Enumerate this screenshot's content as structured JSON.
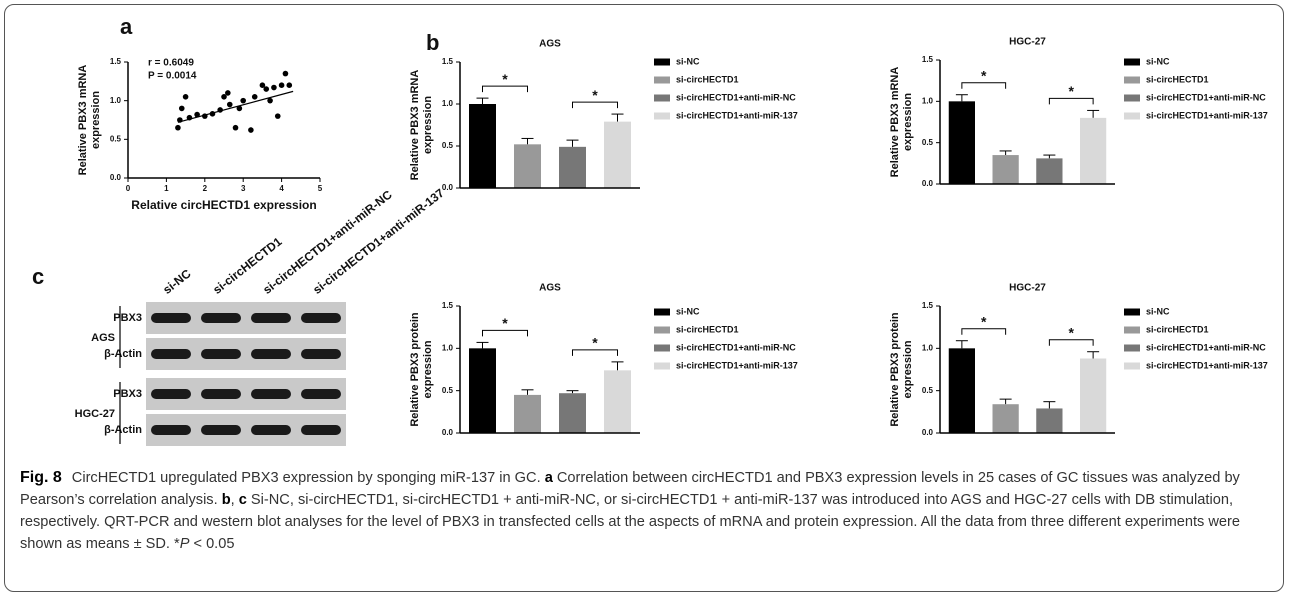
{
  "panel_labels": [
    "a",
    "b",
    "c"
  ],
  "chart_data": [
    {
      "type": "scatter",
      "annotations": [
        "r = 0.6049",
        "P = 0.0014"
      ],
      "xlabel": "Relative circHECTD1 expression",
      "ylabel": [
        "Relative PBX3 mRNA",
        "expression"
      ],
      "x": [
        1.3,
        1.35,
        1.4,
        1.5,
        1.6,
        1.8,
        2.0,
        2.2,
        2.4,
        2.5,
        2.6,
        2.65,
        2.8,
        2.9,
        3.0,
        3.2,
        3.3,
        3.5,
        3.6,
        3.7,
        3.8,
        3.9,
        4.0,
        4.1,
        4.2
      ],
      "values": [
        0.65,
        0.75,
        0.9,
        1.05,
        0.78,
        0.82,
        0.8,
        0.83,
        0.88,
        1.05,
        1.1,
        0.95,
        0.65,
        0.9,
        1.0,
        0.62,
        1.05,
        1.2,
        1.15,
        1.0,
        1.17,
        0.8,
        1.2,
        1.35,
        1.2
      ],
      "color": "#000000",
      "fit_line": {
        "x": [
          1.3,
          4.3
        ],
        "y": [
          0.72,
          1.12
        ]
      },
      "xlim": [
        0,
        5
      ],
      "xticks": [
        0,
        1,
        2,
        3,
        4,
        5
      ],
      "ylim": [
        0,
        1.5
      ],
      "yticks": [
        {
          "value": 0,
          "label": "0.0"
        },
        0.5,
        {
          "value": 1,
          "label": "1.0"
        },
        1.5
      ]
    },
    {
      "type": "bar",
      "title": "AGS",
      "ylabel": [
        "Relative PBX3 mRNA",
        "expression"
      ],
      "series": [
        {
          "name": "si-NC",
          "color": "#000000",
          "values": [
            1.0
          ],
          "errors": [
            0.07
          ]
        },
        {
          "name": "si-circHECTD1",
          "color": "#999999",
          "values": [
            0.52
          ],
          "errors": [
            0.07
          ]
        },
        {
          "name": "si-circHECTD1+anti-miR-NC",
          "color": "#777777",
          "values": [
            0.49
          ],
          "errors": [
            0.08
          ]
        },
        {
          "name": "si-circHECTD1+anti-miR-137",
          "color": "#d9d9d9",
          "values": [
            0.79
          ],
          "errors": [
            0.09
          ]
        }
      ],
      "significance": [
        {
          "pair": [
            0,
            1
          ],
          "label": "*"
        },
        {
          "pair": [
            2,
            3
          ],
          "label": "*"
        }
      ],
      "ylim": [
        0,
        1.5
      ],
      "yticks": [
        {
          "value": 0,
          "label": "0.0"
        },
        0.5,
        {
          "value": 1,
          "label": "1.0"
        },
        1.5
      ]
    },
    {
      "type": "bar",
      "title": "HGC-27",
      "ylabel": [
        "Relative PBX3 mRNA",
        "expression"
      ],
      "series": [
        {
          "name": "si-NC",
          "color": "#000000",
          "values": [
            1.0
          ],
          "errors": [
            0.08
          ]
        },
        {
          "name": "si-circHECTD1",
          "color": "#999999",
          "values": [
            0.35
          ],
          "errors": [
            0.05
          ]
        },
        {
          "name": "si-circHECTD1+anti-miR-NC",
          "color": "#777777",
          "values": [
            0.31
          ],
          "errors": [
            0.04
          ]
        },
        {
          "name": "si-circHECTD1+anti-miR-137",
          "color": "#d9d9d9",
          "values": [
            0.8
          ],
          "errors": [
            0.09
          ]
        }
      ],
      "significance": [
        {
          "pair": [
            0,
            1
          ],
          "label": "*"
        },
        {
          "pair": [
            2,
            3
          ],
          "label": "*"
        }
      ],
      "ylim": [
        0,
        1.5
      ],
      "yticks": [
        {
          "value": 0,
          "label": "0.0"
        },
        0.5,
        {
          "value": 1,
          "label": "1.0"
        },
        1.5
      ]
    },
    {
      "type": "bar",
      "title": "AGS",
      "ylabel": [
        "Relative PBX3 protein",
        "expression"
      ],
      "series": [
        {
          "name": "si-NC",
          "color": "#000000",
          "values": [
            1.0
          ],
          "errors": [
            0.07
          ]
        },
        {
          "name": "si-circHECTD1",
          "color": "#999999",
          "values": [
            0.45
          ],
          "errors": [
            0.06
          ]
        },
        {
          "name": "si-circHECTD1+anti-miR-NC",
          "color": "#777777",
          "values": [
            0.47
          ],
          "errors": [
            0.03
          ]
        },
        {
          "name": "si-circHECTD1+anti-miR-137",
          "color": "#d9d9d9",
          "values": [
            0.74
          ],
          "errors": [
            0.1
          ]
        }
      ],
      "significance": [
        {
          "pair": [
            0,
            1
          ],
          "label": "*"
        },
        {
          "pair": [
            2,
            3
          ],
          "label": "*"
        }
      ],
      "ylim": [
        0,
        1.5
      ],
      "yticks": [
        {
          "value": 0,
          "label": "0.0"
        },
        0.5,
        {
          "value": 1,
          "label": "1.0"
        },
        1.5
      ]
    },
    {
      "type": "bar",
      "title": "HGC-27",
      "ylabel": [
        "Relative PBX3 protein",
        "expression"
      ],
      "series": [
        {
          "name": "si-NC",
          "color": "#000000",
          "values": [
            1.0
          ],
          "errors": [
            0.09
          ]
        },
        {
          "name": "si-circHECTD1",
          "color": "#999999",
          "values": [
            0.34
          ],
          "errors": [
            0.06
          ]
        },
        {
          "name": "si-circHECTD1+anti-miR-NC",
          "color": "#777777",
          "values": [
            0.29
          ],
          "errors": [
            0.08
          ]
        },
        {
          "name": "si-circHECTD1+anti-miR-137",
          "color": "#d9d9d9",
          "values": [
            0.88
          ],
          "errors": [
            0.08
          ]
        }
      ],
      "significance": [
        {
          "pair": [
            0,
            1
          ],
          "label": "*"
        },
        {
          "pair": [
            2,
            3
          ],
          "label": "*"
        }
      ],
      "ylim": [
        0,
        1.5
      ],
      "yticks": [
        {
          "value": 0,
          "label": "0.0"
        },
        0.5,
        {
          "value": 1,
          "label": "1.0"
        },
        1.5
      ]
    }
  ],
  "blot": {
    "lanes": [
      "si-NC",
      "si-circHECTD1",
      "si-circHECTD1+anti-miR-NC",
      "si-circHECTD1+anti-miR-137"
    ],
    "groups": [
      {
        "name": "AGS",
        "bands": [
          "PBX3",
          "β-Actin"
        ]
      },
      {
        "name": "HGC-27",
        "bands": [
          "PBX3",
          "β-Actin"
        ]
      }
    ]
  },
  "caption": {
    "segments": [
      {
        "text": "Fig. 8",
        "bold": true
      },
      {
        "text": "CircHECTD1 upregulated PBX3 expression by sponging miR-137 in GC. "
      },
      {
        "text": "a",
        "bold": true
      },
      {
        "text": " Correlation between circHECTD1 and PBX3 expression levels in 25 cases of GC tissues was analyzed by Pearson’s correlation analysis. "
      },
      {
        "text": "b",
        "bold": true
      },
      {
        "text": ", "
      },
      {
        "text": "c",
        "bold": true
      },
      {
        "text": " Si-NC, si-circHECTD1, si-circHECTD1 + anti-miR-NC, or si-circHECTD1 + anti-miR-137 was introduced into AGS and HGC-27 cells with DB stimulation, respectively. QRT-PCR and western blot analyses for the level of PBX3 in transfected cells at the aspects of mRNA and protein expression. All the data from three different experiments were shown as means ± SD. *"
      },
      {
        "text": "P",
        "italic": true
      },
      {
        "text": " < 0.05"
      }
    ]
  }
}
